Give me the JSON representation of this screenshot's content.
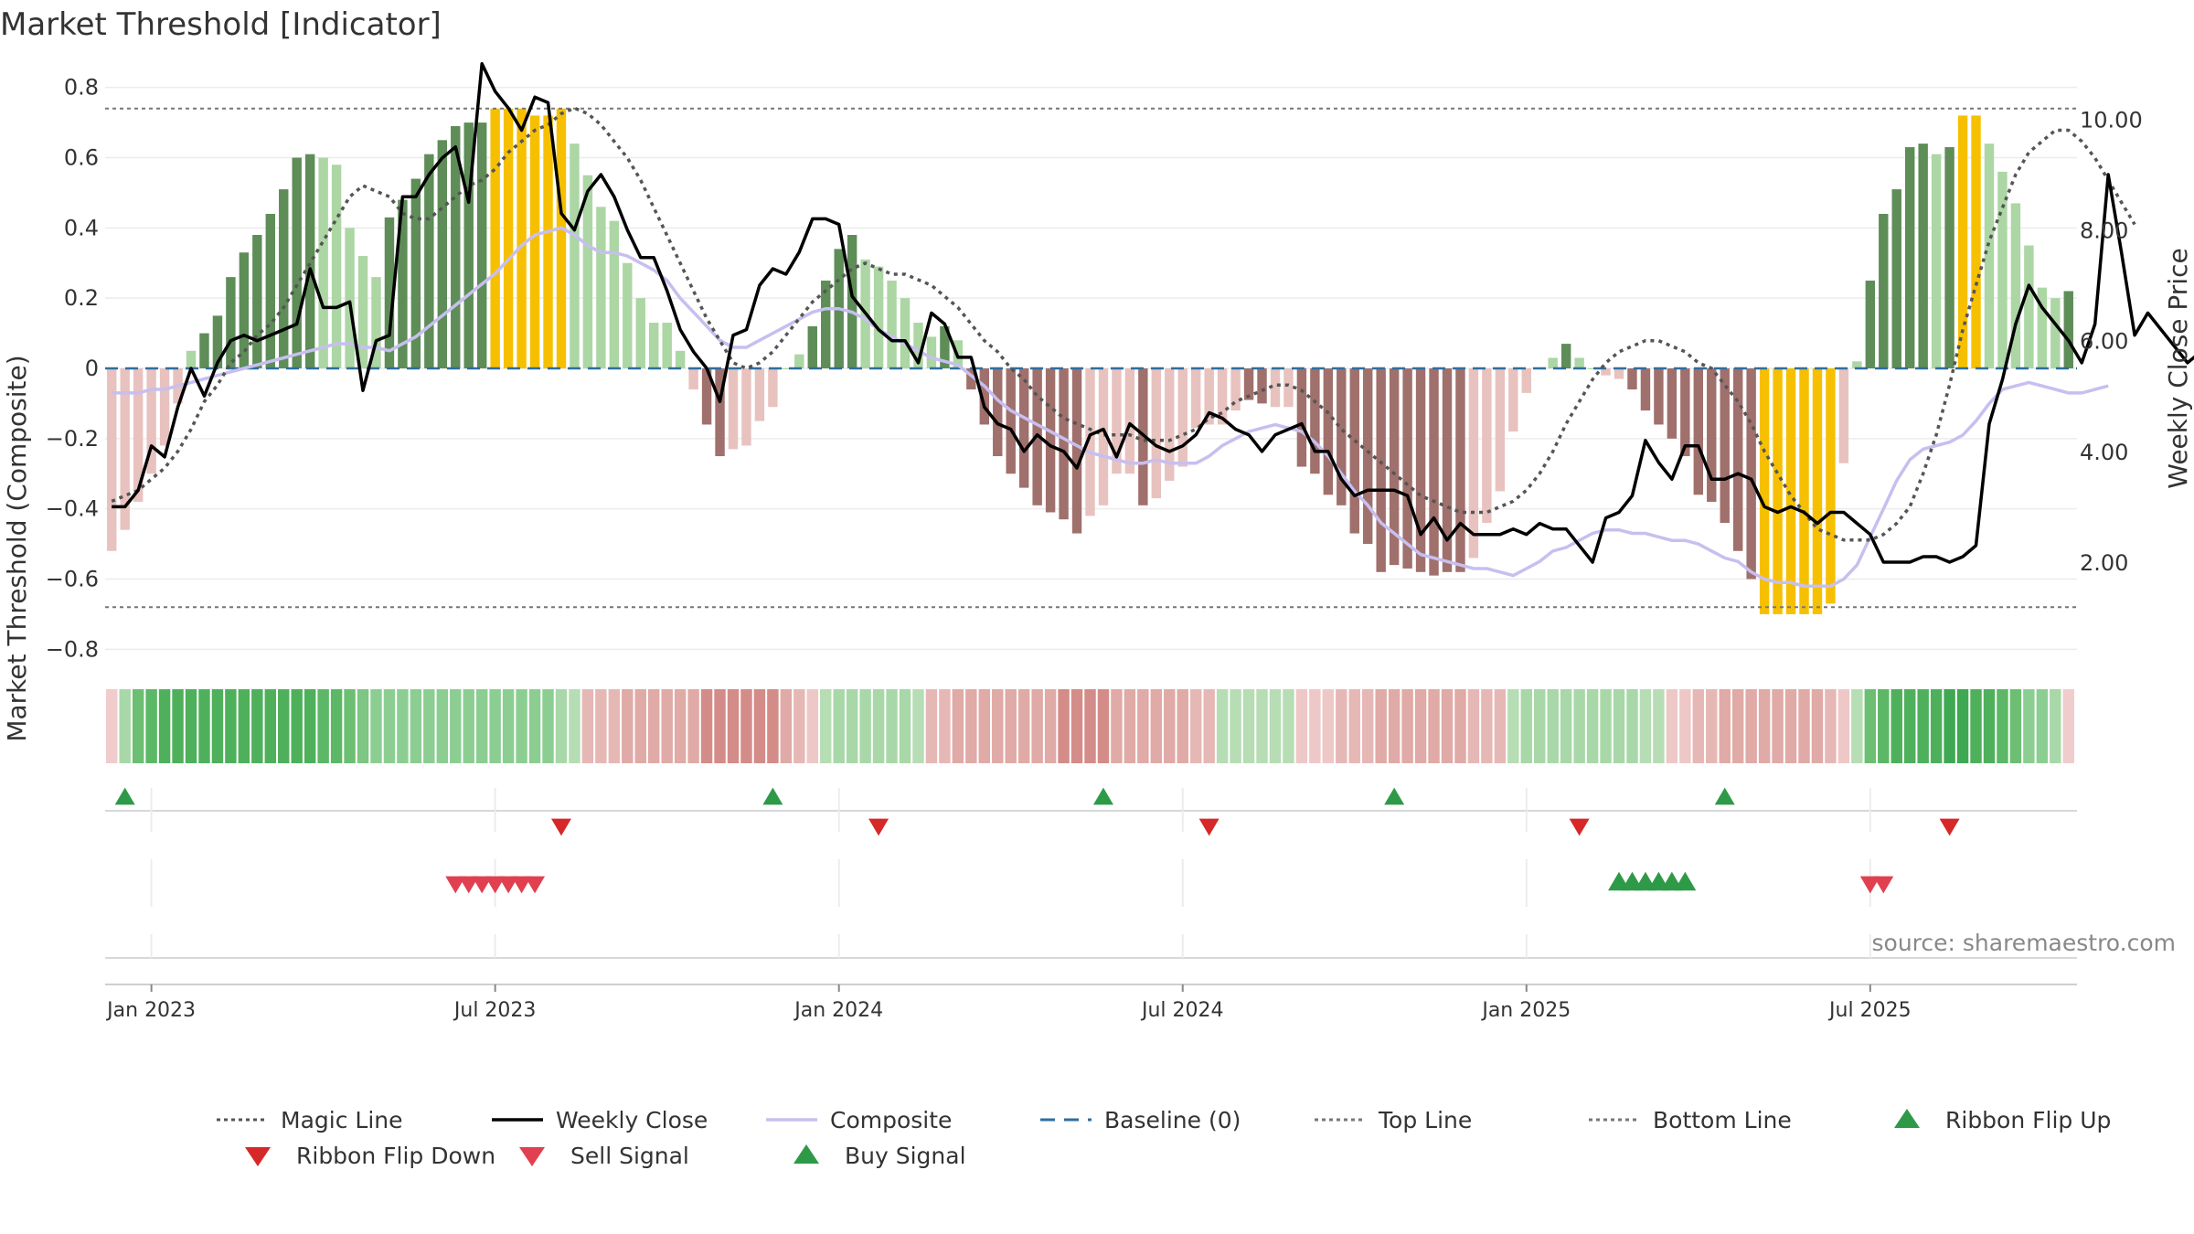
{
  "title": "Market Threshold [Indicator]",
  "source": "source: sharemaestro.com",
  "chart_data": {
    "type": "bar",
    "title": "Market Threshold [Indicator]",
    "ylabel": "Market Threshold (Composite)",
    "ylabel_right": "Weekly Close Price",
    "ylim": [
      -0.82,
      0.82
    ],
    "ylim_right": [
      0.3,
      10.7
    ],
    "yticks": [
      {
        "v": 0.8,
        "label": "0.8"
      },
      {
        "v": 0.6,
        "label": "0.6"
      },
      {
        "v": 0.4,
        "label": "0.4"
      },
      {
        "v": 0.2,
        "label": "0.2"
      },
      {
        "v": 0,
        "label": "0"
      },
      {
        "v": -0.2,
        "label": "−0.2"
      },
      {
        "v": -0.4,
        "label": "−0.4"
      },
      {
        "v": -0.6,
        "label": "−0.6"
      },
      {
        "v": -0.8,
        "label": "−0.8"
      }
    ],
    "yticks_right": [
      {
        "v": 10,
        "label": "10.00"
      },
      {
        "v": 8,
        "label": "8.00"
      },
      {
        "v": 6,
        "label": "6.00"
      },
      {
        "v": 4,
        "label": "4.00"
      },
      {
        "v": 2,
        "label": "2.00"
      }
    ],
    "x_start": "2022-12-16",
    "x_end": "2025-09-19",
    "xticks": [
      {
        "week": 3,
        "label": "Jan 2023"
      },
      {
        "week": 29,
        "label": "Jul 2023"
      },
      {
        "week": 55,
        "label": "Jan 2024"
      },
      {
        "week": 81,
        "label": "Jul 2024"
      },
      {
        "week": 107,
        "label": "Jan 2025"
      },
      {
        "week": 133,
        "label": "Jul 2025"
      }
    ],
    "top_line": 0.74,
    "bottom_line": -0.68,
    "baseline": 0,
    "grid": true,
    "legend_position": "bottom",
    "bars": [
      -0.52,
      -0.46,
      -0.38,
      -0.3,
      -0.22,
      -0.1,
      0.05,
      0.1,
      0.15,
      0.26,
      0.33,
      0.38,
      0.44,
      0.51,
      0.6,
      0.61,
      0.6,
      0.58,
      0.4,
      0.32,
      0.26,
      0.43,
      0.48,
      0.54,
      0.61,
      0.65,
      0.69,
      0.7,
      0.7,
      0.74,
      0.74,
      0.74,
      0.72,
      0.72,
      0.74,
      0.64,
      0.55,
      0.46,
      0.42,
      0.3,
      0.2,
      0.13,
      0.13,
      0.05,
      -0.06,
      -0.16,
      -0.25,
      -0.23,
      -0.22,
      -0.15,
      -0.11,
      0.0,
      0.04,
      0.12,
      0.25,
      0.34,
      0.38,
      0.31,
      0.29,
      0.25,
      0.2,
      0.13,
      0.09,
      0.12,
      0.08,
      -0.06,
      -0.16,
      -0.25,
      -0.3,
      -0.34,
      -0.39,
      -0.41,
      -0.43,
      -0.47,
      -0.42,
      -0.39,
      -0.3,
      -0.3,
      -0.39,
      -0.37,
      -0.32,
      -0.28,
      -0.17,
      -0.16,
      -0.16,
      -0.12,
      -0.09,
      -0.1,
      -0.11,
      -0.11,
      -0.28,
      -0.3,
      -0.36,
      -0.39,
      -0.47,
      -0.5,
      -0.58,
      -0.56,
      -0.57,
      -0.58,
      -0.59,
      -0.58,
      -0.58,
      -0.54,
      -0.44,
      -0.35,
      -0.18,
      -0.07,
      0.0,
      0.03,
      0.07,
      0.03,
      0.0,
      -0.02,
      -0.03,
      -0.06,
      -0.12,
      -0.16,
      -0.2,
      -0.25,
      -0.36,
      -0.38,
      -0.44,
      -0.52,
      -0.6,
      -0.7,
      -0.7,
      -0.7,
      -0.7,
      -0.7,
      -0.67,
      -0.27,
      0.02,
      0.25,
      0.44,
      0.51,
      0.63,
      0.64,
      0.61,
      0.63,
      0.72,
      0.72,
      0.64,
      0.56,
      0.47,
      0.35,
      0.23,
      0.2,
      0.22
    ],
    "bar_colors": [
      "#e8c2bf",
      "#e8c2bf",
      "#e8c2bf",
      "#e8c2bf",
      "#e8c2bf",
      "#e8c2bf",
      "#acd6a4",
      "#5e8d58",
      "#5e8d58",
      "#5e8d58",
      "#5e8d58",
      "#5e8d58",
      "#5e8d58",
      "#5e8d58",
      "#5e8d58",
      "#5e8d58",
      "#acd6a4",
      "#acd6a4",
      "#acd6a4",
      "#acd6a4",
      "#acd6a4",
      "#5e8d58",
      "#5e8d58",
      "#5e8d58",
      "#5e8d58",
      "#5e8d58",
      "#5e8d58",
      "#5e8d58",
      "#5e8d58",
      "#f6c000",
      "#f6c000",
      "#f6c000",
      "#f6c000",
      "#f6c000",
      "#f6c000",
      "#acd6a4",
      "#acd6a4",
      "#acd6a4",
      "#acd6a4",
      "#acd6a4",
      "#acd6a4",
      "#acd6a4",
      "#acd6a4",
      "#acd6a4",
      "#e8c2bf",
      "#a0706c",
      "#a0706c",
      "#e8c2bf",
      "#e8c2bf",
      "#e8c2bf",
      "#e8c2bf",
      "#acd6a4",
      "#acd6a4",
      "#5e8d58",
      "#5e8d58",
      "#5e8d58",
      "#5e8d58",
      "#acd6a4",
      "#acd6a4",
      "#acd6a4",
      "#acd6a4",
      "#acd6a4",
      "#acd6a4",
      "#5e8d58",
      "#acd6a4",
      "#a0706c",
      "#a0706c",
      "#a0706c",
      "#a0706c",
      "#a0706c",
      "#a0706c",
      "#a0706c",
      "#a0706c",
      "#a0706c",
      "#e8c2bf",
      "#e8c2bf",
      "#e8c2bf",
      "#e8c2bf",
      "#a0706c",
      "#e8c2bf",
      "#e8c2bf",
      "#e8c2bf",
      "#e8c2bf",
      "#e8c2bf",
      "#e8c2bf",
      "#e8c2bf",
      "#a0706c",
      "#a0706c",
      "#e8c2bf",
      "#e8c2bf",
      "#a0706c",
      "#a0706c",
      "#a0706c",
      "#a0706c",
      "#a0706c",
      "#a0706c",
      "#a0706c",
      "#a0706c",
      "#a0706c",
      "#a0706c",
      "#a0706c",
      "#a0706c",
      "#a0706c",
      "#e8c2bf",
      "#e8c2bf",
      "#e8c2bf",
      "#e8c2bf",
      "#e8c2bf",
      "#e8c2bf",
      "#acd6a4",
      "#5e8d58",
      "#acd6a4",
      "#acd6a4",
      "#e8c2bf",
      "#e8c2bf",
      "#a0706c",
      "#a0706c",
      "#a0706c",
      "#a0706c",
      "#a0706c",
      "#a0706c",
      "#a0706c",
      "#a0706c",
      "#a0706c",
      "#a0706c",
      "#f6c000",
      "#f6c000",
      "#f6c000",
      "#f6c000",
      "#f6c000",
      "#f6c000",
      "#e8c2bf",
      "#acd6a4",
      "#5e8d58",
      "#5e8d58",
      "#5e8d58",
      "#5e8d58",
      "#5e8d58",
      "#acd6a4",
      "#5e8d58",
      "#f6c000",
      "#f6c000",
      "#acd6a4",
      "#acd6a4",
      "#acd6a4",
      "#acd6a4",
      "#acd6a4",
      "#acd6a4",
      "#5e8d58"
    ],
    "ribbon_colors": [
      "#f0cccc",
      "#a8d8a8",
      "#6cbf72",
      "#5cb866",
      "#4fb05c",
      "#4fb05c",
      "#4fb05c",
      "#4fb05c",
      "#4fb05c",
      "#4fb05c",
      "#4fb05c",
      "#4fb05c",
      "#4fb05c",
      "#4fb05c",
      "#4fb05c",
      "#4fb05c",
      "#5cb866",
      "#5cb866",
      "#6cbf72",
      "#7dc683",
      "#8cce92",
      "#8cce92",
      "#8cce92",
      "#8cce92",
      "#8cce92",
      "#8cce92",
      "#8cce92",
      "#8cce92",
      "#8cce92",
      "#8cce92",
      "#8cce92",
      "#8cce92",
      "#8cce92",
      "#8cce92",
      "#a8d8a8",
      "#b6ddb4",
      "#e6b8b5",
      "#e6b8b5",
      "#e6b8b5",
      "#e0aaa6",
      "#e0aaa6",
      "#e0aaa6",
      "#e0aaa6",
      "#e0aaa6",
      "#e0aaa6",
      "#d48c88",
      "#d48c88",
      "#d48c88",
      "#d48c88",
      "#d48c88",
      "#d48c88",
      "#e0aaa6",
      "#e6b8b5",
      "#eec8c6",
      "#b6ddb4",
      "#a8d8a8",
      "#a8d8a8",
      "#a8d8a8",
      "#a8d8a8",
      "#a8d8a8",
      "#a8d8a8",
      "#b6ddb4",
      "#e6b8b5",
      "#e6b8b5",
      "#e0aaa6",
      "#e0aaa6",
      "#e0aaa6",
      "#e0aaa6",
      "#e0aaa6",
      "#e0aaa6",
      "#e0aaa6",
      "#e0aaa6",
      "#d48c88",
      "#d48c88",
      "#d48c88",
      "#d48c88",
      "#e0aaa6",
      "#e0aaa6",
      "#e0aaa6",
      "#e0aaa6",
      "#e0aaa6",
      "#e0aaa6",
      "#e6b8b5",
      "#e6b8b5",
      "#b6ddb4",
      "#b6ddb4",
      "#b6ddb4",
      "#b6ddb4",
      "#b6ddb4",
      "#b6ddb4",
      "#eec8c6",
      "#eec8c6",
      "#eec8c6",
      "#e6b8b5",
      "#e6b8b5",
      "#e6b8b5",
      "#e0aaa6",
      "#e0aaa6",
      "#e0aaa6",
      "#e0aaa6",
      "#e0aaa6",
      "#e0aaa6",
      "#e0aaa6",
      "#e6b8b5",
      "#e6b8b5",
      "#e6b8b5",
      "#b6ddb4",
      "#a8d8a8",
      "#a8d8a8",
      "#a8d8a8",
      "#a8d8a8",
      "#a8d8a8",
      "#a8d8a8",
      "#a8d8a8",
      "#a8d8a8",
      "#a8d8a8",
      "#b6ddb4",
      "#b6ddb4",
      "#eec8c6",
      "#eec8c6",
      "#e6b8b5",
      "#e6b8b5",
      "#e0aaa6",
      "#e0aaa6",
      "#e0aaa6",
      "#e0aaa6",
      "#e0aaa6",
      "#e0aaa6",
      "#e0aaa6",
      "#e0aaa6",
      "#e6b8b5",
      "#eec8c6",
      "#b6ddb4",
      "#6cbf72",
      "#5cb866",
      "#4fb05c",
      "#4fb05c",
      "#4fb05c",
      "#4fb05c",
      "#3fa852",
      "#3fa852",
      "#4fb05c",
      "#4fb05c",
      "#5cb866",
      "#6cbf72",
      "#8cce92",
      "#8cce92",
      "#a8d8a8",
      "#f0cccc"
    ],
    "series": [
      {
        "name": "Weekly Close",
        "values": [
          3.0,
          3.0,
          3.3,
          4.1,
          3.9,
          4.8,
          5.5,
          5.0,
          5.6,
          6.0,
          6.1,
          6.0,
          6.1,
          6.2,
          6.3,
          7.3,
          6.6,
          6.6,
          6.7,
          5.1,
          6.0,
          6.1,
          8.6,
          8.6,
          9.0,
          9.3,
          9.5,
          8.5,
          11.0,
          10.5,
          10.2,
          9.8,
          10.4,
          10.3,
          8.3,
          8.0,
          8.7,
          9.0,
          8.6,
          8.0,
          7.5,
          7.5,
          6.9,
          6.2,
          5.8,
          5.5,
          4.9,
          6.1,
          6.2,
          7.0,
          7.3,
          7.2,
          7.6,
          8.2,
          8.2,
          8.1,
          6.8,
          6.5,
          6.2,
          6.0,
          6.0,
          5.6,
          6.5,
          6.3,
          5.7,
          5.7,
          4.8,
          4.5,
          4.4,
          4.0,
          4.3,
          4.1,
          4.0,
          3.7,
          4.3,
          4.4,
          3.9,
          4.5,
          4.3,
          4.1,
          4.0,
          4.1,
          4.3,
          4.7,
          4.6,
          4.4,
          4.3,
          4.0,
          4.3,
          4.4,
          4.5,
          4.0,
          4.0,
          3.5,
          3.2,
          3.3,
          3.3,
          3.3,
          3.2,
          2.5,
          2.8,
          2.4,
          2.7,
          2.5,
          2.5,
          2.5,
          2.6,
          2.5,
          2.7,
          2.6,
          2.6,
          2.3,
          2.0,
          2.8,
          2.9,
          3.2,
          4.2,
          3.8,
          3.5,
          4.1,
          4.1,
          3.5,
          3.5,
          3.6,
          3.5,
          3.0,
          2.9,
          3.0,
          2.9,
          2.7,
          2.9,
          2.9,
          2.7,
          2.5,
          2.0,
          2.0,
          2.0,
          2.1,
          2.1,
          2.0,
          2.1,
          2.3,
          4.5,
          5.3,
          6.3,
          7.0,
          6.6,
          6.3,
          6.0,
          5.6,
          6.3,
          9.0,
          7.6,
          6.1,
          6.5,
          6.2,
          5.9,
          5.6,
          5.8,
          6.4,
          6.9
        ]
      },
      {
        "name": "Magic Line",
        "values": [
          3.1,
          3.2,
          3.3,
          3.5,
          3.7,
          4.0,
          4.4,
          4.9,
          5.2,
          5.6,
          5.8,
          6.1,
          6.3,
          6.6,
          7.0,
          7.4,
          7.8,
          8.2,
          8.6,
          8.8,
          8.7,
          8.6,
          8.3,
          8.2,
          8.2,
          8.4,
          8.6,
          8.8,
          8.9,
          9.1,
          9.4,
          9.6,
          9.8,
          9.9,
          10.1,
          10.2,
          10.1,
          9.9,
          9.6,
          9.3,
          8.9,
          8.4,
          7.9,
          7.4,
          6.9,
          6.4,
          6.0,
          5.6,
          5.5,
          5.6,
          5.8,
          6.1,
          6.4,
          6.7,
          6.9,
          7.1,
          7.3,
          7.4,
          7.3,
          7.2,
          7.2,
          7.1,
          7.0,
          6.8,
          6.6,
          6.3,
          6.0,
          5.8,
          5.5,
          5.3,
          5.0,
          4.8,
          4.6,
          4.5,
          4.4,
          4.3,
          4.3,
          4.3,
          4.2,
          4.2,
          4.2,
          4.3,
          4.4,
          4.6,
          4.7,
          4.9,
          5.0,
          5.1,
          5.2,
          5.2,
          5.1,
          4.9,
          4.7,
          4.4,
          4.2,
          4.0,
          3.8,
          3.6,
          3.4,
          3.2,
          3.1,
          3.0,
          2.9,
          2.9,
          2.9,
          3.0,
          3.1,
          3.3,
          3.6,
          4.0,
          4.5,
          4.9,
          5.3,
          5.6,
          5.8,
          5.9,
          6.0,
          6.0,
          5.9,
          5.8,
          5.6,
          5.5,
          5.2,
          4.9,
          4.5,
          4.0,
          3.6,
          3.2,
          2.9,
          2.6,
          2.5,
          2.4,
          2.4,
          2.4,
          2.5,
          2.7,
          3.0,
          3.6,
          4.3,
          5.2,
          6.2,
          7.0,
          7.8,
          8.4,
          9.0,
          9.4,
          9.6,
          9.8,
          9.8,
          9.6,
          9.3,
          8.9,
          8.5,
          8.1
        ]
      },
      {
        "name": "Composite",
        "values": [
          -0.07,
          -0.07,
          -0.07,
          -0.06,
          -0.06,
          -0.05,
          -0.04,
          -0.03,
          -0.02,
          -0.01,
          0.0,
          0.01,
          0.02,
          0.03,
          0.04,
          0.05,
          0.06,
          0.07,
          0.07,
          0.06,
          0.06,
          0.05,
          0.07,
          0.09,
          0.12,
          0.15,
          0.18,
          0.21,
          0.24,
          0.27,
          0.31,
          0.35,
          0.38,
          0.39,
          0.4,
          0.38,
          0.35,
          0.33,
          0.33,
          0.32,
          0.3,
          0.28,
          0.25,
          0.2,
          0.16,
          0.12,
          0.08,
          0.06,
          0.06,
          0.08,
          0.1,
          0.12,
          0.14,
          0.16,
          0.17,
          0.17,
          0.16,
          0.14,
          0.11,
          0.09,
          0.07,
          0.05,
          0.03,
          0.02,
          0.01,
          -0.02,
          -0.05,
          -0.09,
          -0.12,
          -0.14,
          -0.16,
          -0.18,
          -0.2,
          -0.22,
          -0.24,
          -0.25,
          -0.26,
          -0.27,
          -0.27,
          -0.26,
          -0.27,
          -0.27,
          -0.27,
          -0.25,
          -0.22,
          -0.2,
          -0.18,
          -0.17,
          -0.16,
          -0.17,
          -0.18,
          -0.21,
          -0.25,
          -0.3,
          -0.35,
          -0.39,
          -0.44,
          -0.47,
          -0.5,
          -0.53,
          -0.54,
          -0.55,
          -0.56,
          -0.57,
          -0.57,
          -0.58,
          -0.59,
          -0.57,
          -0.55,
          -0.52,
          -0.51,
          -0.49,
          -0.47,
          -0.46,
          -0.46,
          -0.47,
          -0.47,
          -0.48,
          -0.49,
          -0.49,
          -0.5,
          -0.52,
          -0.54,
          -0.55,
          -0.58,
          -0.6,
          -0.61,
          -0.61,
          -0.62,
          -0.62,
          -0.62,
          -0.6,
          -0.56,
          -0.48,
          -0.4,
          -0.32,
          -0.26,
          -0.23,
          -0.22,
          -0.21,
          -0.19,
          -0.15,
          -0.1,
          -0.06,
          -0.05,
          -0.04,
          -0.05,
          -0.06,
          -0.07,
          -0.07,
          -0.06,
          -0.05
        ]
      }
    ],
    "ribbon_flip_up": [
      1,
      50,
      75,
      97,
      122
    ],
    "ribbon_flip_down": [
      34,
      58,
      83,
      111,
      139
    ],
    "sell_signal": [
      26,
      27,
      28,
      29,
      30,
      31,
      32,
      133,
      134
    ],
    "buy_signal": [
      114,
      115,
      116,
      117,
      118,
      119
    ],
    "legend": [
      {
        "label": "Magic Line",
        "marker": "dotted",
        "color": "#555555"
      },
      {
        "label": "Weekly Close",
        "marker": "solid",
        "color": "#000000"
      },
      {
        "label": "Composite",
        "marker": "solid",
        "color": "#c7bfef"
      },
      {
        "label": "Baseline (0)",
        "marker": "dashed",
        "color": "#2e6ea0"
      },
      {
        "label": "Top Line",
        "marker": "dotted",
        "color": "#777777"
      },
      {
        "label": "Bottom Line",
        "marker": "dotted",
        "color": "#777777"
      },
      {
        "label": "Ribbon Flip Up",
        "marker": "triangle-up",
        "color": "#2e9a48"
      },
      {
        "label": "Ribbon Flip Down",
        "marker": "triangle-down",
        "color": "#d62828"
      },
      {
        "label": "Sell Signal",
        "marker": "triangle-down",
        "color": "#e04050"
      },
      {
        "label": "Buy Signal",
        "marker": "triangle-up",
        "color": "#2e9a48"
      }
    ]
  }
}
